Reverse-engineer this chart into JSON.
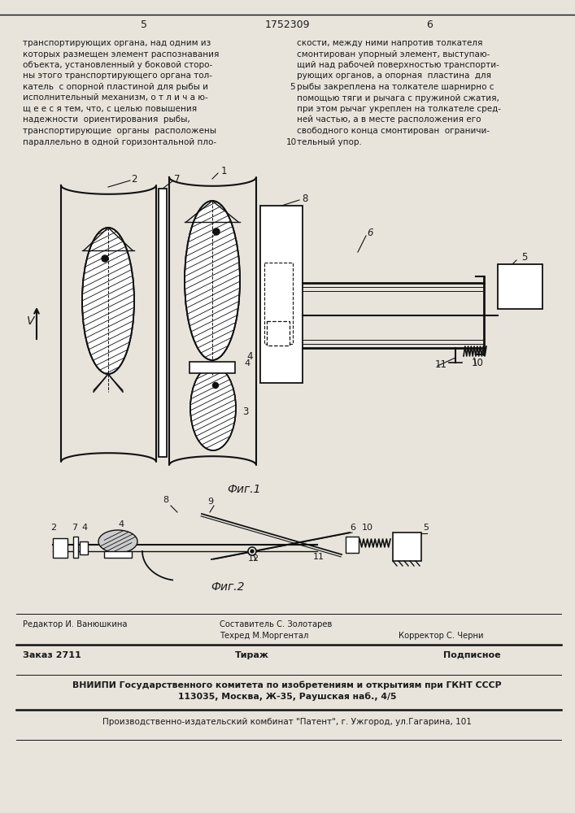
{
  "page_number_left": "5",
  "page_number_center": "1752309",
  "page_number_right": "6",
  "fig1_label": "Фиг.1",
  "fig2_label": "Фиг.2",
  "editor_label": "Редактор И. Ванюшкина",
  "composer_label": "Составитель С. Золотарев",
  "tech_editor_label": "Техред М.Моргентал",
  "corrector_label": "Корректор С. Черни",
  "order_label": "Заказ 2711",
  "circulation_label": "Тираж",
  "subscription_label": "Подписное",
  "vniiipi_line1": "ВНИИПИ Государственного комитета по изобретениям и открытиям при ГКНТ СССР",
  "vniiipi_line2": "113035, Москва, Ж-35, Раушская наб., 4/5",
  "publisher_line": "Производственно-издательский комбинат \"Патент\", г. Ужгород, ул.Гагарина, 101",
  "bg_color": "#e8e4dc",
  "text_color": "#1a1a1a",
  "line_color": "#111111"
}
